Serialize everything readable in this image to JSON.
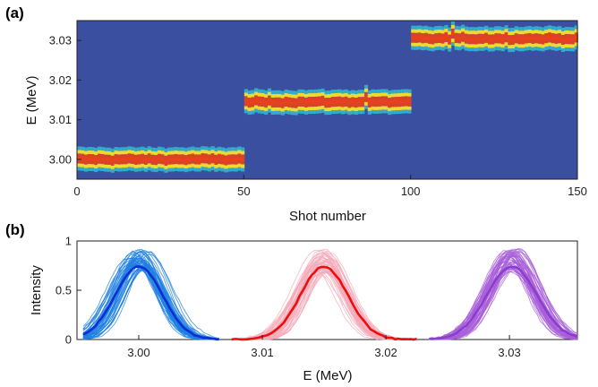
{
  "chart_data": [
    {
      "panel_label": "(a)",
      "type": "heatmap",
      "xlabel": "Shot number",
      "ylabel": "E (MeV)",
      "xlim": [
        0,
        150
      ],
      "ylim": [
        2.995,
        3.035
      ],
      "xticks": [
        "0",
        "50",
        "100",
        "150"
      ],
      "yticks": [
        "3.00",
        "3.01",
        "3.02",
        "3.03"
      ],
      "segments": [
        {
          "shots": [
            0,
            50
          ],
          "center_energy": 3.0
        },
        {
          "shots": [
            50,
            100
          ],
          "center_energy": 3.0145
        },
        {
          "shots": [
            100,
            150
          ],
          "center_energy": 3.0305
        }
      ],
      "colors": {
        "background": "#3a4fa0",
        "low": "#2fc7d8",
        "mid": "#f6e12b",
        "high": "#e8411e"
      }
    },
    {
      "panel_label": "(b)",
      "type": "line",
      "xlabel": "E (MeV)",
      "ylabel": "Intensity",
      "xlim": [
        2.995,
        3.0355
      ],
      "ylim": [
        0,
        1
      ],
      "xticks": [
        "3.00",
        "3.01",
        "3.02",
        "3.03"
      ],
      "yticks": [
        "0",
        "0.5",
        "1"
      ],
      "series": [
        {
          "center": 3.0,
          "sigma": 0.0018,
          "mean_peak": 0.74,
          "x_range": [
            2.9955,
            3.0065
          ],
          "color": "#1f7fe0",
          "mean_color": "#0a2fd4"
        },
        {
          "center": 3.015,
          "sigma": 0.0018,
          "mean_peak": 0.74,
          "x_range": [
            3.0075,
            3.0225
          ],
          "color": "#f4a9b8",
          "mean_color": "#e81010"
        },
        {
          "center": 3.0302,
          "sigma": 0.0019,
          "mean_peak": 0.74,
          "x_range": [
            3.0235,
            3.0355
          ],
          "color": "#a85fd8",
          "mean_color": "#8a3ed0"
        }
      ]
    }
  ]
}
